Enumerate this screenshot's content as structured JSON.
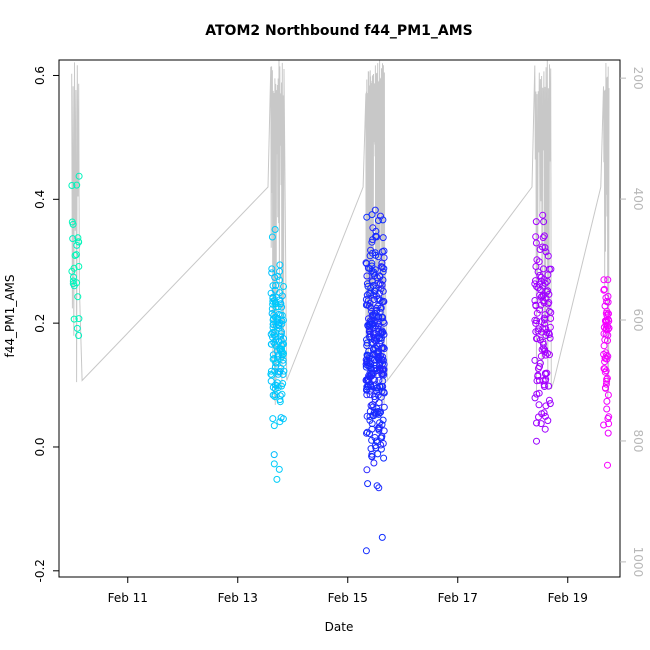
{
  "chart_data": {
    "type": "scatter",
    "title": "ATOM2 Northbound f44_PM1_AMS",
    "xlabel": "Date",
    "ylabel": "f44_PM1_AMS",
    "x_unit": "day",
    "x_range_days": [
      9.75,
      19.95
    ],
    "xticks": [
      {
        "day": 11,
        "label": "Feb 11"
      },
      {
        "day": 13,
        "label": "Feb 13"
      },
      {
        "day": 15,
        "label": "Feb 15"
      },
      {
        "day": 17,
        "label": "Feb 17"
      },
      {
        "day": 19,
        "label": "Feb 19"
      }
    ],
    "ylim": [
      -0.21,
      0.625
    ],
    "yticks": [
      -0.2,
      0.0,
      0.2,
      0.4,
      0.6
    ],
    "ytick_labels": [
      "-0.2",
      "0.0",
      "0.2",
      "0.4",
      "0.6"
    ],
    "right_axis": {
      "lim": [
        1025,
        170
      ],
      "ticks": [
        200,
        400,
        600,
        800,
        1000
      ],
      "tick_labels": [
        "200",
        "400",
        "600",
        "800",
        "1000"
      ],
      "color": "#b8b8b8"
    },
    "grid": false,
    "legend": "none",
    "marker": "open-circle",
    "color_gradient": [
      "#00ffaa",
      "#00c8ff",
      "#0033ff",
      "#8a00ff",
      "#ff00ff"
    ],
    "altitude_line_color": "#c8c8c8",
    "clusters": [
      {
        "center_day": 10.05,
        "spread_days": 0.07,
        "count": 25,
        "y_center": 0.29,
        "y_sd": 0.07,
        "y_min": 0.18,
        "y_max": 0.44,
        "color_t": 0.05
      },
      {
        "center_day": 13.72,
        "spread_days": 0.12,
        "count": 130,
        "y_center": 0.17,
        "y_sd": 0.07,
        "y_min": -0.06,
        "y_max": 0.6,
        "color_t": 0.25
      },
      {
        "center_day": 15.5,
        "spread_days": 0.17,
        "count": 320,
        "y_center": 0.17,
        "y_sd": 0.1,
        "y_min": -0.19,
        "y_max": 0.4,
        "color_t": 0.55
      },
      {
        "center_day": 18.55,
        "spread_days": 0.15,
        "count": 120,
        "y_center": 0.19,
        "y_sd": 0.08,
        "y_min": -0.16,
        "y_max": 0.57,
        "color_t": 0.8
      },
      {
        "center_day": 19.7,
        "spread_days": 0.05,
        "count": 60,
        "y_center": 0.16,
        "y_sd": 0.06,
        "y_min": -0.07,
        "y_max": 0.27,
        "color_t": 0.97
      }
    ]
  }
}
